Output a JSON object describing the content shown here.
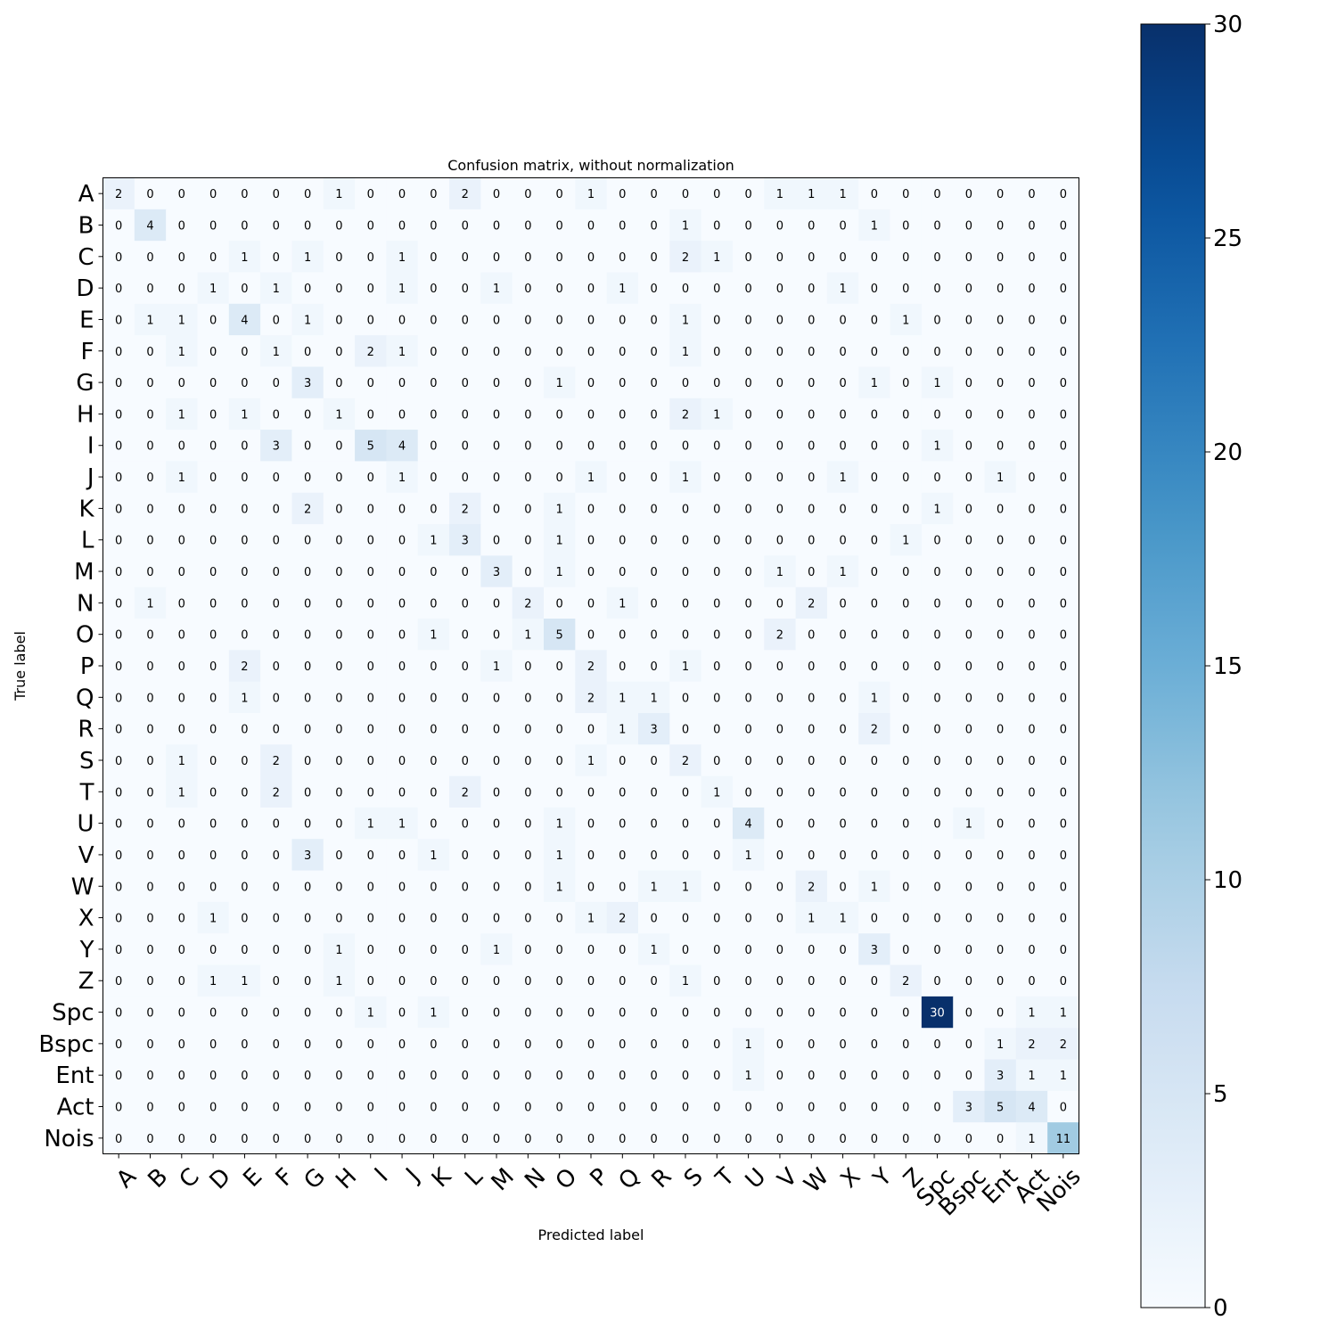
{
  "chart_data": {
    "type": "heatmap",
    "title": "Confusion matrix, without normalization",
    "xlabel": "Predicted label",
    "ylabel": "True label",
    "labels": [
      "A",
      "B",
      "C",
      "D",
      "E",
      "F",
      "G",
      "H",
      "I",
      "J",
      "K",
      "L",
      "M",
      "N",
      "O",
      "P",
      "Q",
      "R",
      "S",
      "T",
      "U",
      "V",
      "W",
      "X",
      "Y",
      "Z",
      "Spc",
      "Bspc",
      "Ent",
      "Act",
      "Nois"
    ],
    "values": [
      [
        2,
        0,
        0,
        0,
        0,
        0,
        0,
        1,
        0,
        0,
        0,
        2,
        0,
        0,
        0,
        1,
        0,
        0,
        0,
        0,
        0,
        1,
        1,
        1,
        0,
        0,
        0,
        0,
        0,
        0,
        0
      ],
      [
        0,
        4,
        0,
        0,
        0,
        0,
        0,
        0,
        0,
        0,
        0,
        0,
        0,
        0,
        0,
        0,
        0,
        0,
        1,
        0,
        0,
        0,
        0,
        0,
        1,
        0,
        0,
        0,
        0,
        0,
        0
      ],
      [
        0,
        0,
        0,
        0,
        1,
        0,
        1,
        0,
        0,
        1,
        0,
        0,
        0,
        0,
        0,
        0,
        0,
        0,
        2,
        1,
        0,
        0,
        0,
        0,
        0,
        0,
        0,
        0,
        0,
        0,
        0
      ],
      [
        0,
        0,
        0,
        1,
        0,
        1,
        0,
        0,
        0,
        1,
        0,
        0,
        1,
        0,
        0,
        0,
        1,
        0,
        0,
        0,
        0,
        0,
        0,
        1,
        0,
        0,
        0,
        0,
        0,
        0,
        0
      ],
      [
        0,
        1,
        1,
        0,
        4,
        0,
        1,
        0,
        0,
        0,
        0,
        0,
        0,
        0,
        0,
        0,
        0,
        0,
        1,
        0,
        0,
        0,
        0,
        0,
        0,
        1,
        0,
        0,
        0,
        0,
        0
      ],
      [
        0,
        0,
        1,
        0,
        0,
        1,
        0,
        0,
        2,
        1,
        0,
        0,
        0,
        0,
        0,
        0,
        0,
        0,
        1,
        0,
        0,
        0,
        0,
        0,
        0,
        0,
        0,
        0,
        0,
        0,
        0
      ],
      [
        0,
        0,
        0,
        0,
        0,
        0,
        3,
        0,
        0,
        0,
        0,
        0,
        0,
        0,
        1,
        0,
        0,
        0,
        0,
        0,
        0,
        0,
        0,
        0,
        1,
        0,
        1,
        0,
        0,
        0,
        0
      ],
      [
        0,
        0,
        1,
        0,
        1,
        0,
        0,
        1,
        0,
        0,
        0,
        0,
        0,
        0,
        0,
        0,
        0,
        0,
        2,
        1,
        0,
        0,
        0,
        0,
        0,
        0,
        0,
        0,
        0,
        0,
        0
      ],
      [
        0,
        0,
        0,
        0,
        0,
        3,
        0,
        0,
        5,
        4,
        0,
        0,
        0,
        0,
        0,
        0,
        0,
        0,
        0,
        0,
        0,
        0,
        0,
        0,
        0,
        0,
        1,
        0,
        0,
        0,
        0
      ],
      [
        0,
        0,
        1,
        0,
        0,
        0,
        0,
        0,
        0,
        1,
        0,
        0,
        0,
        0,
        0,
        1,
        0,
        0,
        1,
        0,
        0,
        0,
        0,
        1,
        0,
        0,
        0,
        0,
        1,
        0,
        0
      ],
      [
        0,
        0,
        0,
        0,
        0,
        0,
        2,
        0,
        0,
        0,
        0,
        2,
        0,
        0,
        1,
        0,
        0,
        0,
        0,
        0,
        0,
        0,
        0,
        0,
        0,
        0,
        1,
        0,
        0,
        0,
        0
      ],
      [
        0,
        0,
        0,
        0,
        0,
        0,
        0,
        0,
        0,
        0,
        1,
        3,
        0,
        0,
        1,
        0,
        0,
        0,
        0,
        0,
        0,
        0,
        0,
        0,
        0,
        1,
        0,
        0,
        0,
        0,
        0
      ],
      [
        0,
        0,
        0,
        0,
        0,
        0,
        0,
        0,
        0,
        0,
        0,
        0,
        3,
        0,
        1,
        0,
        0,
        0,
        0,
        0,
        0,
        1,
        0,
        1,
        0,
        0,
        0,
        0,
        0,
        0,
        0
      ],
      [
        0,
        1,
        0,
        0,
        0,
        0,
        0,
        0,
        0,
        0,
        0,
        0,
        0,
        2,
        0,
        0,
        1,
        0,
        0,
        0,
        0,
        0,
        2,
        0,
        0,
        0,
        0,
        0,
        0,
        0,
        0
      ],
      [
        0,
        0,
        0,
        0,
        0,
        0,
        0,
        0,
        0,
        0,
        1,
        0,
        0,
        1,
        5,
        0,
        0,
        0,
        0,
        0,
        0,
        2,
        0,
        0,
        0,
        0,
        0,
        0,
        0,
        0,
        0
      ],
      [
        0,
        0,
        0,
        0,
        2,
        0,
        0,
        0,
        0,
        0,
        0,
        0,
        1,
        0,
        0,
        2,
        0,
        0,
        1,
        0,
        0,
        0,
        0,
        0,
        0,
        0,
        0,
        0,
        0,
        0,
        0
      ],
      [
        0,
        0,
        0,
        0,
        1,
        0,
        0,
        0,
        0,
        0,
        0,
        0,
        0,
        0,
        0,
        2,
        1,
        1,
        0,
        0,
        0,
        0,
        0,
        0,
        1,
        0,
        0,
        0,
        0,
        0,
        0
      ],
      [
        0,
        0,
        0,
        0,
        0,
        0,
        0,
        0,
        0,
        0,
        0,
        0,
        0,
        0,
        0,
        0,
        1,
        3,
        0,
        0,
        0,
        0,
        0,
        0,
        2,
        0,
        0,
        0,
        0,
        0,
        0
      ],
      [
        0,
        0,
        1,
        0,
        0,
        2,
        0,
        0,
        0,
        0,
        0,
        0,
        0,
        0,
        0,
        1,
        0,
        0,
        2,
        0,
        0,
        0,
        0,
        0,
        0,
        0,
        0,
        0,
        0,
        0,
        0
      ],
      [
        0,
        0,
        1,
        0,
        0,
        2,
        0,
        0,
        0,
        0,
        0,
        2,
        0,
        0,
        0,
        0,
        0,
        0,
        0,
        1,
        0,
        0,
        0,
        0,
        0,
        0,
        0,
        0,
        0,
        0,
        0
      ],
      [
        0,
        0,
        0,
        0,
        0,
        0,
        0,
        0,
        1,
        1,
        0,
        0,
        0,
        0,
        1,
        0,
        0,
        0,
        0,
        0,
        4,
        0,
        0,
        0,
        0,
        0,
        0,
        1,
        0,
        0,
        0
      ],
      [
        0,
        0,
        0,
        0,
        0,
        0,
        3,
        0,
        0,
        0,
        1,
        0,
        0,
        0,
        1,
        0,
        0,
        0,
        0,
        0,
        1,
        0,
        0,
        0,
        0,
        0,
        0,
        0,
        0,
        0,
        0
      ],
      [
        0,
        0,
        0,
        0,
        0,
        0,
        0,
        0,
        0,
        0,
        0,
        0,
        0,
        0,
        1,
        0,
        0,
        1,
        1,
        0,
        0,
        0,
        2,
        0,
        1,
        0,
        0,
        0,
        0,
        0,
        0
      ],
      [
        0,
        0,
        0,
        1,
        0,
        0,
        0,
        0,
        0,
        0,
        0,
        0,
        0,
        0,
        0,
        1,
        2,
        0,
        0,
        0,
        0,
        0,
        1,
        1,
        0,
        0,
        0,
        0,
        0,
        0,
        0
      ],
      [
        0,
        0,
        0,
        0,
        0,
        0,
        0,
        1,
        0,
        0,
        0,
        0,
        1,
        0,
        0,
        0,
        0,
        1,
        0,
        0,
        0,
        0,
        0,
        0,
        3,
        0,
        0,
        0,
        0,
        0,
        0
      ],
      [
        0,
        0,
        0,
        1,
        1,
        0,
        0,
        1,
        0,
        0,
        0,
        0,
        0,
        0,
        0,
        0,
        0,
        0,
        1,
        0,
        0,
        0,
        0,
        0,
        0,
        2,
        0,
        0,
        0,
        0,
        0
      ],
      [
        0,
        0,
        0,
        0,
        0,
        0,
        0,
        0,
        1,
        0,
        1,
        0,
        0,
        0,
        0,
        0,
        0,
        0,
        0,
        0,
        0,
        0,
        0,
        0,
        0,
        0,
        30,
        0,
        0,
        1,
        1
      ],
      [
        0,
        0,
        0,
        0,
        0,
        0,
        0,
        0,
        0,
        0,
        0,
        0,
        0,
        0,
        0,
        0,
        0,
        0,
        0,
        0,
        1,
        0,
        0,
        0,
        0,
        0,
        0,
        0,
        1,
        2,
        2
      ],
      [
        0,
        0,
        0,
        0,
        0,
        0,
        0,
        0,
        0,
        0,
        0,
        0,
        0,
        0,
        0,
        0,
        0,
        0,
        0,
        0,
        1,
        0,
        0,
        0,
        0,
        0,
        0,
        0,
        3,
        1,
        1
      ],
      [
        0,
        0,
        0,
        0,
        0,
        0,
        0,
        0,
        0,
        0,
        0,
        0,
        0,
        0,
        0,
        0,
        0,
        0,
        0,
        0,
        0,
        0,
        0,
        0,
        0,
        0,
        0,
        3,
        5,
        4,
        0
      ],
      [
        0,
        0,
        0,
        0,
        0,
        0,
        0,
        0,
        0,
        0,
        0,
        0,
        0,
        0,
        0,
        0,
        0,
        0,
        0,
        0,
        0,
        0,
        0,
        0,
        0,
        0,
        0,
        0,
        0,
        1,
        11
      ]
    ],
    "colorbar": {
      "range": [
        0,
        30
      ],
      "ticks": [
        "0",
        "5",
        "10",
        "15",
        "20",
        "25",
        "30"
      ],
      "colormap": "Blues",
      "low_color": "#f7fbff",
      "high_color": "#08306b"
    },
    "cell_text_colors": {
      "dark": "#000000",
      "light": "#ffffff"
    },
    "grid": false,
    "legend": "colorbar-right"
  }
}
